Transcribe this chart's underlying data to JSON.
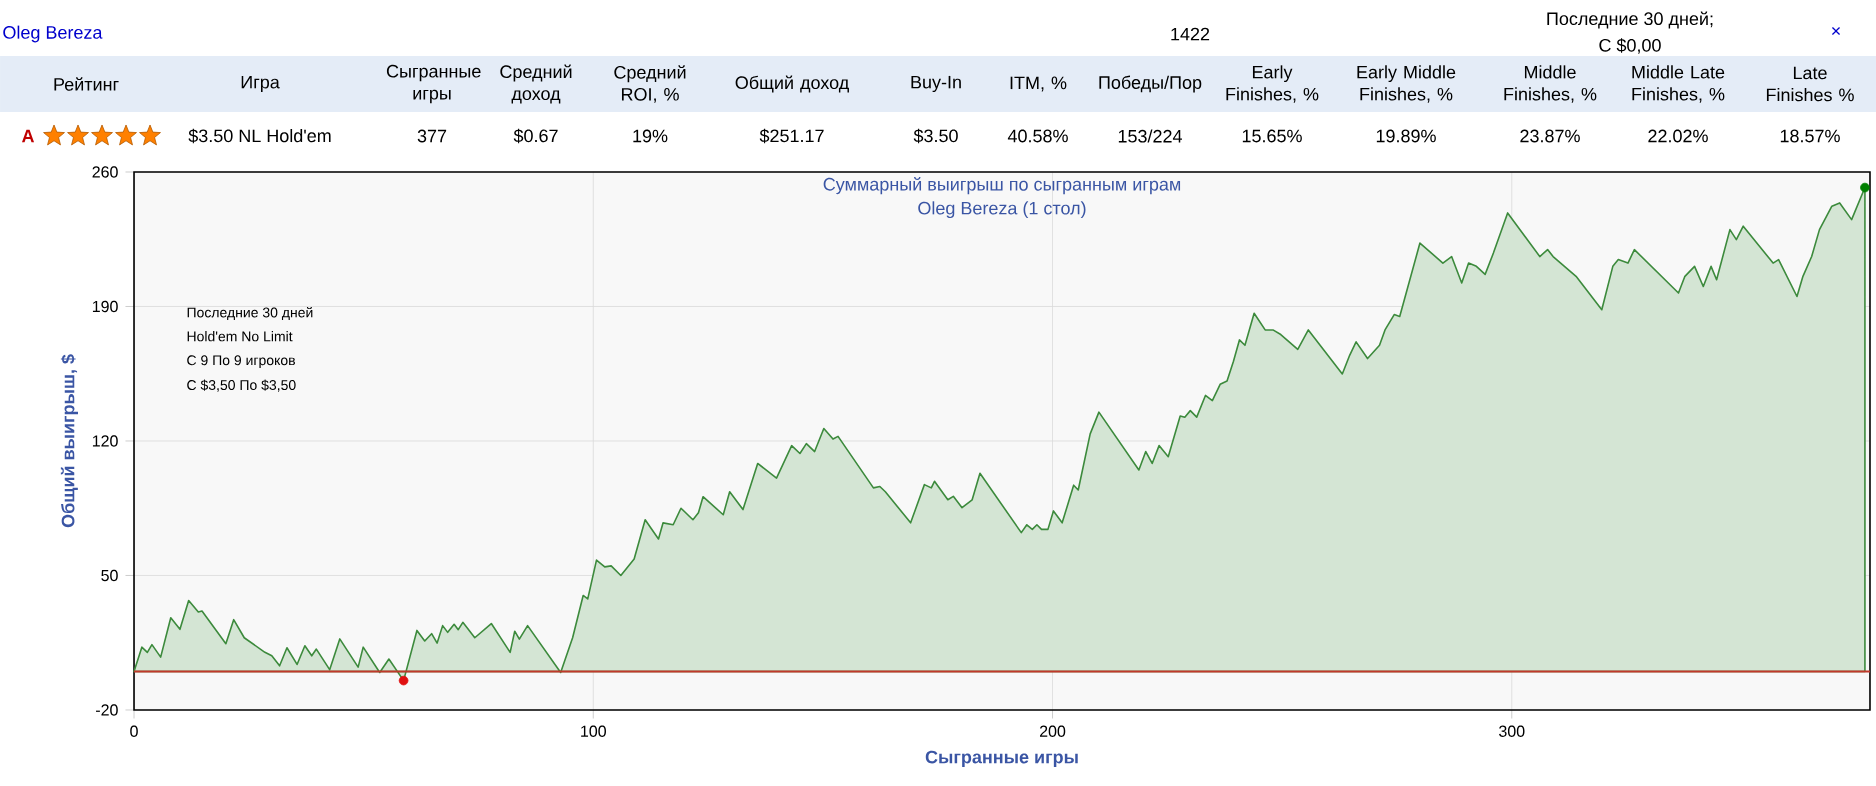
{
  "chart_data": [
    {
      "type": "other",
      "categories": [
        "Рейтинг",
        "Игра",
        "Сыгранные игры",
        "Средний доход",
        "Средний ROI, %",
        "Общий доход",
        "Buy-In",
        "ITM, %",
        "Победы/Пор",
        "Early Finishes, %",
        "Early Middle Finishes, %",
        "Middle Finishes, %",
        "Middle Late Finishes, %",
        "Late Finishes %"
      ],
      "annotations": [
        "Oleg Bereza",
        "1422",
        "Последние 30 дней;",
        "C $0,00",
        "×",
        "A",
        "$3.50 NL Hold'em",
        "377",
        "$0.67",
        "19%",
        "$251.17",
        "$3.50",
        "40.58%",
        "153/224",
        "15.65%",
        "19.89%",
        "23.87%",
        "22.02%",
        "18.57%"
      ]
    },
    {
      "type": "area",
      "title": "Суммарный выигрыш по сыгранным играм",
      "subtitle": "Oleg Bereza (1 стол)",
      "xlabel": "Сыгранные игры",
      "ylabel": "Общий выигрыш, $",
      "annotations": [
        "Последние 30 дней",
        "Hold'em No Limit",
        "C 9 По 9 игроков",
        "C $3,50 По $3,50"
      ],
      "xlim": [
        0,
        378
      ],
      "ylim": [
        -20,
        260
      ],
      "xticks": [
        0,
        100,
        200,
        300
      ],
      "yticks": [
        -20,
        50,
        120,
        190,
        260
      ],
      "grid": true,
      "ref_lines": [
        {
          "axis": "y",
          "value": 0,
          "color": "#c0392b"
        }
      ],
      "series": [
        {
          "type": "area",
          "color": "#3c8a3c",
          "x": [
            0,
            1.7,
            2.9,
            3.9,
            5.8,
            8,
            10,
            11.9,
            14,
            14.8,
            20,
            21.7,
            24,
            28.5,
            30,
            31.7,
            33.3,
            35.5,
            37.2,
            38.7,
            39.7,
            42.6,
            44.8,
            48.8,
            49.9,
            53.5,
            55.5,
            58.7,
            61.6,
            63.3,
            64.8,
            66,
            67.2,
            68.3,
            69.7,
            70.6,
            71.6,
            74.2,
            77.8,
            81.9,
            82.9,
            83.9,
            85.7,
            92.9,
            95.5,
            97.8,
            98.8,
            100.7,
            102.5,
            103.9,
            106,
            108.9,
            111.3,
            114.2,
            115.2,
            117.4,
            119.1,
            121.7,
            122.9,
            123.9,
            128.3,
            129.7,
            132.6,
            135.8,
            139.9,
            143.2,
            145,
            146.4,
            148.2,
            150.2,
            152.2,
            153.3,
            161,
            162.4,
            163.6,
            169.1,
            172.1,
            173.6,
            174.3,
            177.2,
            178.4,
            180.3,
            182.5,
            184.2,
            193.2,
            194.4,
            195.6,
            196.6,
            197.6,
            199,
            200.2,
            202.1,
            204.6,
            205.6,
            208.2,
            210.1,
            218.8,
            220.3,
            221.7,
            223.2,
            225.2,
            227.8,
            228.8,
            230,
            231.4,
            233.3,
            234.8,
            236.5,
            238,
            239.4,
            240.7,
            241.9,
            243.9,
            246.3,
            248,
            249.7,
            253.4,
            255.7,
            263.1,
            264.7,
            266.1,
            268.6,
            271.2,
            272.4,
            274.4,
            275.6,
            280,
            285,
            286.9,
            289.1,
            290.6,
            292.3,
            294.2,
            296,
            299.1,
            306.1,
            307.8,
            309,
            314,
            319.6,
            322,
            323.2,
            325.3,
            326.7,
            336.3,
            337.7,
            339.8,
            341.7,
            343.4,
            344.6,
            347.5,
            348.9,
            350.4,
            356.9,
            358.1,
            362.1,
            363.4,
            365.3,
            367,
            369.7,
            371.4,
            374,
            376.9
          ],
          "values": [
            0,
            12.7,
            10,
            14,
            7.5,
            28,
            22,
            37,
            31,
            31.5,
            14.5,
            27,
            17.6,
            10,
            8.2,
            3,
            12.4,
            3.7,
            13.4,
            8.2,
            11.7,
            1,
            17,
            2.3,
            12.7,
            -0.5,
            6.5,
            -4.7,
            21.4,
            15.9,
            19.7,
            14.8,
            23.9,
            20.4,
            24.6,
            21.8,
            25.6,
            17.6,
            25,
            10,
            21,
            16.9,
            23.9,
            -0.5,
            17.6,
            39.6,
            37.8,
            58,
            54.5,
            55,
            50,
            58.6,
            79,
            69,
            77.4,
            76.4,
            85,
            79,
            82.6,
            91,
            81.6,
            93.6,
            84.3,
            108.3,
            100.7,
            117.6,
            113.5,
            118.6,
            114.5,
            126.5,
            121,
            122.4,
            95.6,
            96.3,
            93.6,
            77.4,
            97.3,
            95.6,
            99,
            89.4,
            91.2,
            85.3,
            89.4,
            103.2,
            72.3,
            76.4,
            74,
            76.4,
            74,
            74,
            83.6,
            77.4,
            97,
            94.5,
            123.7,
            135,
            104.9,
            114.5,
            108.3,
            117.6,
            111.8,
            133,
            132.4,
            135.8,
            132.4,
            143.7,
            141,
            149.5,
            151.2,
            161.5,
            172.6,
            169.8,
            186.5,
            177.8,
            177.8,
            175.4,
            167.7,
            177.8,
            154.9,
            164.6,
            171.6,
            162.9,
            169.8,
            177.8,
            185.8,
            184.8,
            223,
            212.6,
            216,
            202.2,
            212.6,
            210.9,
            206.7,
            217.8,
            238.7,
            216,
            219.6,
            216,
            205.7,
            188.3,
            210.9,
            214.4,
            212.6,
            219.6,
            197,
            205.7,
            210.9,
            200.4,
            210.9,
            203.9,
            230,
            224.8,
            231.8,
            212.6,
            214.4,
            195.2,
            205.7,
            216,
            230,
            242.2,
            243.9,
            235.2,
            251.9
          ]
        },
        {
          "type": "scatter",
          "color": "#e01010",
          "x": [
            58.7
          ],
          "values": [
            -4.7
          ]
        },
        {
          "type": "scatter",
          "color": "#008000",
          "x": [
            376.9
          ],
          "values": [
            251.9
          ]
        }
      ]
    }
  ]
}
